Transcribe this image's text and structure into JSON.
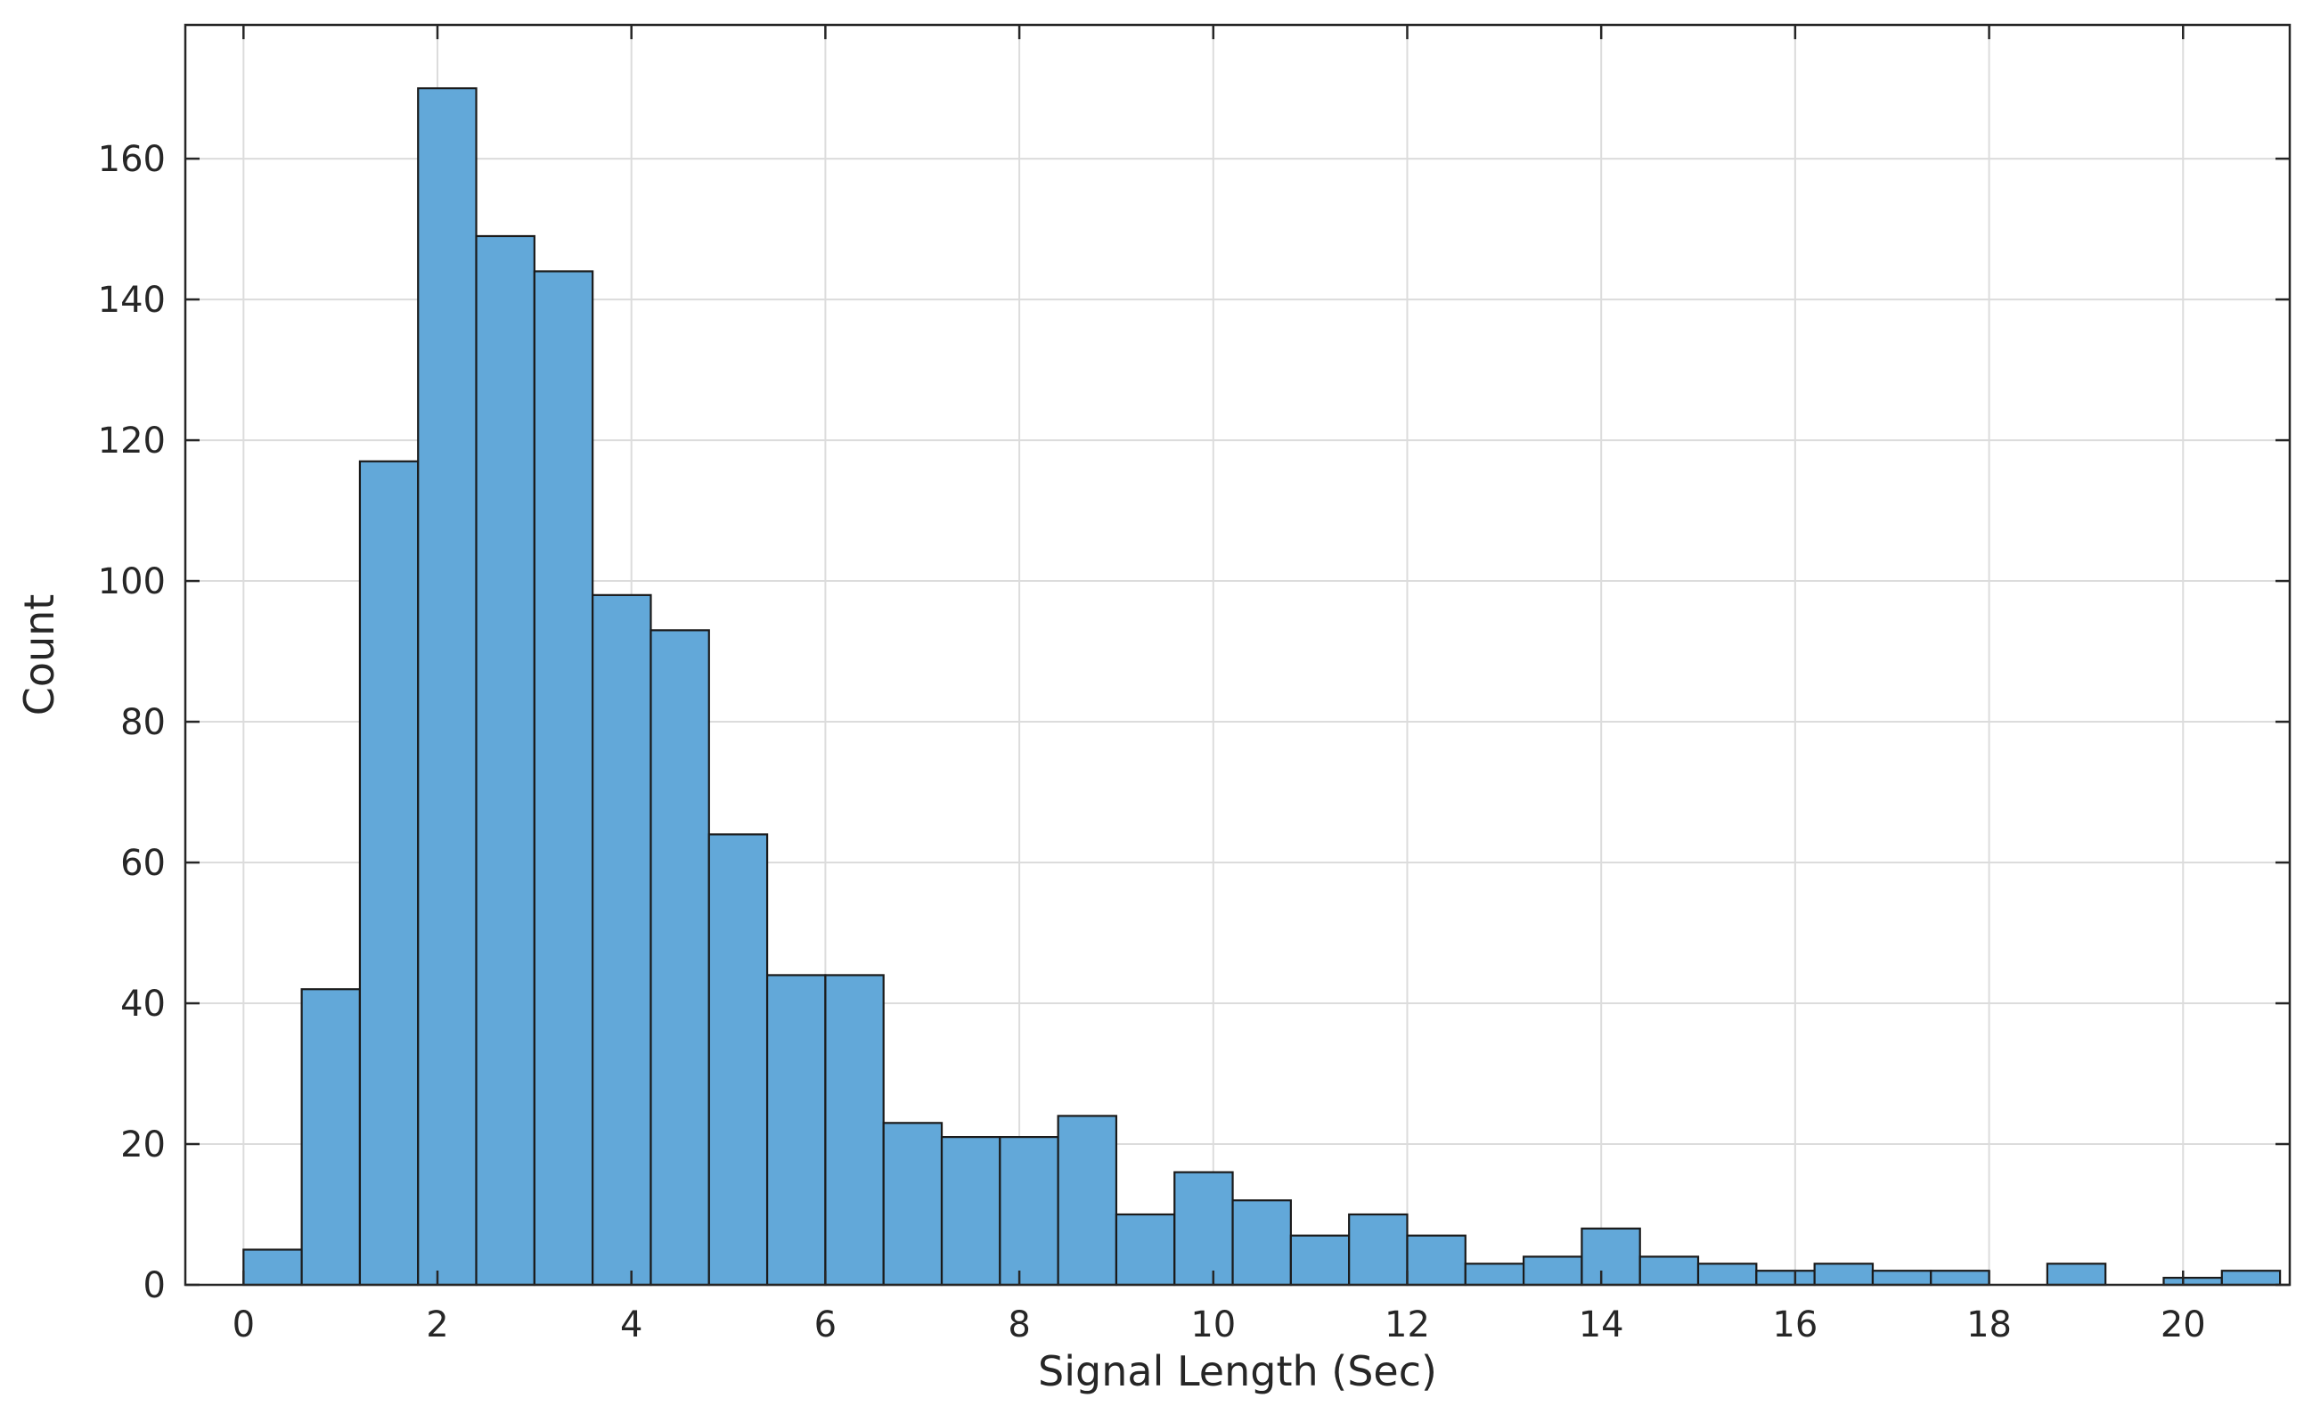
{
  "chart_data": {
    "type": "bar",
    "title": "",
    "xlabel": "Signal Length (Sec)",
    "ylabel": "Count",
    "xlim": [
      -0.6,
      21.1
    ],
    "ylim": [
      0,
      179
    ],
    "grid": true,
    "bar_color": "#62a8d9",
    "edge_color": "#1a1a1a",
    "bin_width": 0.6,
    "bin_start": 0,
    "values": [
      5,
      42,
      117,
      170,
      149,
      144,
      98,
      93,
      64,
      44,
      44,
      23,
      21,
      21,
      24,
      10,
      16,
      12,
      7,
      10,
      7,
      3,
      4,
      8,
      4,
      3,
      2,
      3,
      2,
      2,
      0,
      3,
      0,
      1,
      2
    ],
    "xticks": [
      0,
      2,
      4,
      6,
      8,
      10,
      12,
      14,
      16,
      18,
      20
    ],
    "yticks": [
      0,
      20,
      40,
      60,
      80,
      100,
      120,
      140,
      160
    ]
  }
}
